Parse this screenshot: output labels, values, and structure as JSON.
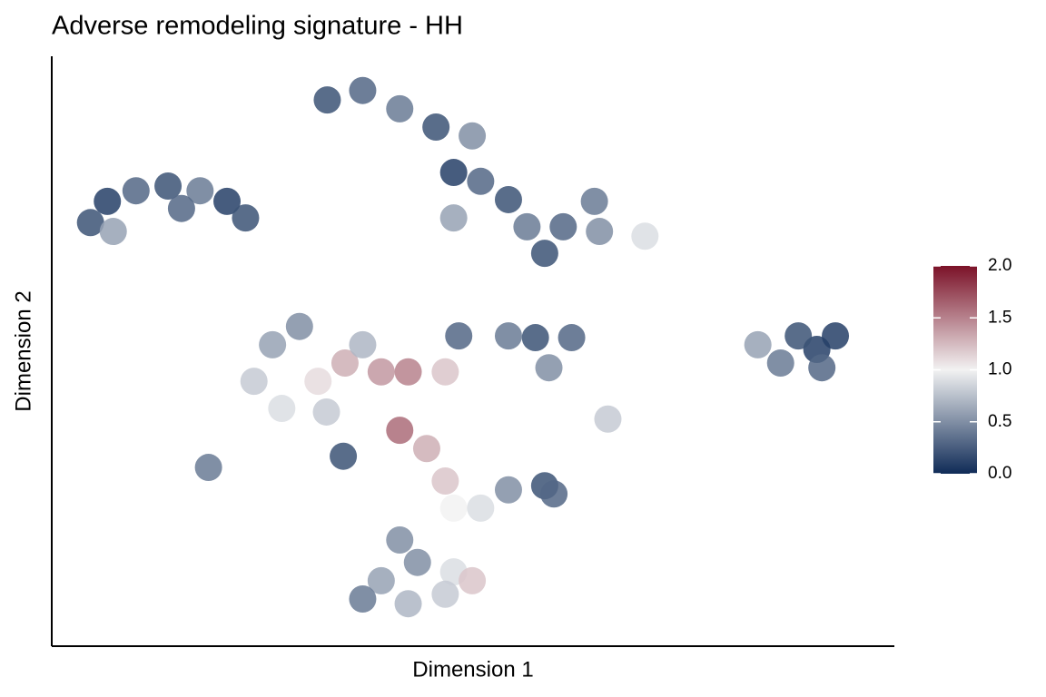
{
  "chart_data": {
    "type": "scatter",
    "title": "Adverse remodeling signature - HH",
    "x_label": "Dimension 1",
    "y_label": "Dimension 2",
    "xlim": [
      0,
      100
    ],
    "ylim": [
      0,
      100
    ],
    "x": [
      4.6,
      6.6,
      10.0,
      13.8,
      17.6,
      20.8,
      23.0,
      7.3,
      15.4,
      32.7,
      36.9,
      41.3,
      45.6,
      49.9,
      47.7,
      50.9,
      47.7,
      54.2,
      56.4,
      60.7,
      65.0,
      70.4,
      58.5,
      64.4,
      90.8,
      88.6,
      93.0,
      91.4,
      86.5,
      83.8,
      57.4,
      61.7,
      54.2,
      59.0,
      26.2,
      24.0,
      29.4,
      31.6,
      27.3,
      34.8,
      39.1,
      36.9,
      42.3,
      46.7,
      32.6,
      41.3,
      44.5,
      46.7,
      47.7,
      50.9,
      58.5,
      54.2,
      59.6,
      39.1,
      43.4,
      47.7,
      36.9,
      42.3,
      46.7,
      41.3,
      49.9,
      66.0,
      18.6,
      34.6,
      48.3
    ],
    "y": [
      71.8,
      75.4,
      77.2,
      78.0,
      77.2,
      75.4,
      72.6,
      70.3,
      74.2,
      92.6,
      94.2,
      91.1,
      88.0,
      86.5,
      80.3,
      78.8,
      72.6,
      75.7,
      71.1,
      71.1,
      70.3,
      69.5,
      66.6,
      75.4,
      50.3,
      52.6,
      52.6,
      47.2,
      48.0,
      51.1,
      52.3,
      52.3,
      52.6,
      47.2,
      51.1,
      44.9,
      54.2,
      44.9,
      40.3,
      48.0,
      46.5,
      51.1,
      46.5,
      46.5,
      39.7,
      36.6,
      33.5,
      28.0,
      23.4,
      23.4,
      27.2,
      26.5,
      25.8,
      11.1,
      14.2,
      12.6,
      8.0,
      7.2,
      8.8,
      18.0,
      11.1,
      38.5,
      30.3,
      32.2,
      52.6
    ],
    "values": [
      0.2,
      0.1,
      0.3,
      0.2,
      0.4,
      0.1,
      0.2,
      0.6,
      0.3,
      0.2,
      0.3,
      0.4,
      0.2,
      0.5,
      0.1,
      0.3,
      0.6,
      0.2,
      0.4,
      0.3,
      0.5,
      0.9,
      0.2,
      0.4,
      0.1,
      0.2,
      0.1,
      0.3,
      0.4,
      0.6,
      0.2,
      0.3,
      0.4,
      0.5,
      0.6,
      0.8,
      0.5,
      1.1,
      0.9,
      1.3,
      1.4,
      0.7,
      1.5,
      1.2,
      0.8,
      1.6,
      1.3,
      1.2,
      1.0,
      0.9,
      0.2,
      0.5,
      0.3,
      0.6,
      0.5,
      0.9,
      0.4,
      0.7,
      0.8,
      0.5,
      1.2,
      0.8,
      0.4,
      0.2,
      0.3
    ],
    "colormap": [
      "#0f2b57",
      "#f2f2f2",
      "#7b1228"
    ],
    "colorlim": [
      0,
      2
    ],
    "colorticks": [
      0.0,
      0.5,
      1.0,
      1.5,
      2.0
    ],
    "colorticks_labels": [
      "0.0",
      "0.5",
      "1.0",
      "1.5",
      "2.0"
    ]
  }
}
